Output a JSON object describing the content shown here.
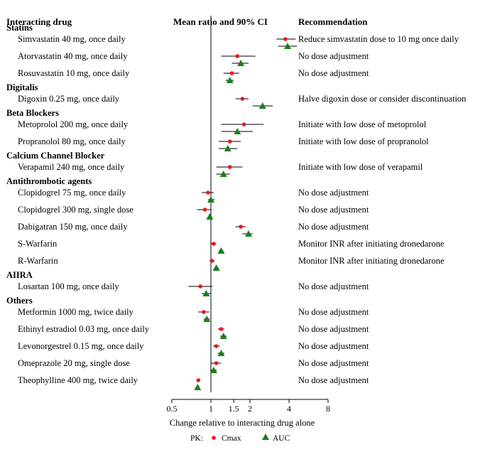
{
  "chart_data": {
    "type": "forest",
    "headers": {
      "drug": "Interacting drug",
      "ci": "Mean ratio and 90% CI",
      "recommendation": "Recommendation"
    },
    "xlabel": "Change relative to interacting drug alone",
    "x_scale": "log",
    "xlim": [
      0.5,
      8
    ],
    "x_ticks": [
      {
        "value": 0.5,
        "label": "0.5"
      },
      {
        "value": 1,
        "label": "1"
      },
      {
        "value": 1.5,
        "label": "1.5"
      },
      {
        "value": 2,
        "label": "2"
      },
      {
        "value": 4,
        "label": "4"
      },
      {
        "value": 8,
        "label": "8"
      }
    ],
    "reference_line": 1,
    "legend": {
      "prefix": "PK:",
      "items": [
        {
          "name": "Cmax",
          "shape": "circle",
          "color": "#e41a1c"
        },
        {
          "name": "AUC",
          "shape": "triangle",
          "color": "#1a7f1a"
        }
      ]
    },
    "groups": [
      {
        "name": "Statins",
        "rows": [
          {
            "drug": "Simvastatin 40 mg, once daily",
            "recommendation": "Reduce simvastatin dose to 10 mg once daily",
            "cmax": {
              "mean": 3.75,
              "lo": 3.2,
              "hi": 4.5
            },
            "auc": {
              "mean": 3.9,
              "lo": 3.3,
              "hi": 4.6
            }
          },
          {
            "drug": "Atorvastatin 40 mg, once daily",
            "recommendation": "No dose adjustment",
            "cmax": {
              "mean": 1.6,
              "lo": 1.2,
              "hi": 2.2
            },
            "auc": {
              "mean": 1.7,
              "lo": 1.45,
              "hi": 1.95
            }
          },
          {
            "drug": "Rosuvastatin 10 mg, once daily",
            "recommendation": "No dose adjustment",
            "cmax": {
              "mean": 1.45,
              "lo": 1.25,
              "hi": 1.65
            },
            "auc": {
              "mean": 1.4,
              "lo": 1.3,
              "hi": 1.5
            }
          }
        ]
      },
      {
        "name": "Digitalis",
        "rows": [
          {
            "drug": "Digoxin 0.25 mg, once daily",
            "recommendation": "Halve digoxin dose or consider discontinuation",
            "cmax": {
              "mean": 1.75,
              "lo": 1.55,
              "hi": 1.95
            },
            "auc": {
              "mean": 2.5,
              "lo": 2.1,
              "hi": 3.0
            }
          }
        ]
      },
      {
        "name": "Beta Blockers",
        "rows": [
          {
            "drug": "Metoprolol 200 mg, once daily",
            "recommendation": "Initiate with low dose of metoprolol",
            "cmax": {
              "mean": 1.8,
              "lo": 1.2,
              "hi": 2.55
            },
            "auc": {
              "mean": 1.6,
              "lo": 1.2,
              "hi": 2.1
            }
          },
          {
            "drug": "Propranolol 80 mg, once daily",
            "recommendation": "Initiate with low dose of propranolol",
            "cmax": {
              "mean": 1.4,
              "lo": 1.15,
              "hi": 1.7
            },
            "auc": {
              "mean": 1.35,
              "lo": 1.15,
              "hi": 1.6
            }
          }
        ]
      },
      {
        "name": "Calcium Channel Blocker",
        "rows": [
          {
            "drug": "Verapamil 240 mg, once daily",
            "recommendation": "Initiate with low dose of verapamil",
            "cmax": {
              "mean": 1.4,
              "lo": 1.1,
              "hi": 1.75
            },
            "auc": {
              "mean": 1.25,
              "lo": 1.1,
              "hi": 1.4
            }
          }
        ]
      },
      {
        "name": "Antithrombotic agents",
        "rows": [
          {
            "drug": "Clopidogrel 75 mg, once daily",
            "recommendation": "No dose adjustment",
            "cmax": {
              "mean": 0.95,
              "lo": 0.85,
              "hi": 1.05
            },
            "auc": {
              "mean": 1.0,
              "lo": 0.95,
              "hi": 1.07
            }
          },
          {
            "drug": "Clopidogrel 300 mg, single dose",
            "recommendation": "No dose adjustment",
            "cmax": {
              "mean": 0.9,
              "lo": 0.78,
              "hi": 1.0
            },
            "auc": {
              "mean": 0.98,
              "lo": 0.95,
              "hi": 1.02
            }
          },
          {
            "drug": "Dabigatran 150 mg, once daily",
            "recommendation": "No dose adjustment",
            "cmax": {
              "mean": 1.7,
              "lo": 1.55,
              "hi": 1.85
            },
            "auc": {
              "mean": 1.95,
              "lo": 1.75,
              "hi": 2.1
            }
          },
          {
            "drug": "S-Warfarin",
            "recommendation": "Monitor INR after initiating dronedarone",
            "cmax": {
              "mean": 1.05,
              "lo": 1.0,
              "hi": 1.1
            },
            "auc": {
              "mean": 1.2,
              "lo": 1.15,
              "hi": 1.25
            }
          },
          {
            "drug": "R-Warfarin",
            "recommendation": "Monitor INR after initiating dronedarone",
            "cmax": {
              "mean": 1.02,
              "lo": 0.97,
              "hi": 1.07
            },
            "auc": {
              "mean": 1.1,
              "lo": 1.06,
              "hi": 1.15
            }
          }
        ]
      },
      {
        "name": "AIIRA",
        "rows": [
          {
            "drug": "Losartan 100 mg, once daily",
            "recommendation": "No dose adjustment",
            "cmax": {
              "mean": 0.83,
              "lo": 0.67,
              "hi": 1.03
            },
            "auc": {
              "mean": 0.92,
              "lo": 0.85,
              "hi": 1.0
            }
          }
        ]
      },
      {
        "name": "Others",
        "rows": [
          {
            "drug": "Metformin 1000 mg, twice daily",
            "recommendation": "No dose adjustment",
            "cmax": {
              "mean": 0.88,
              "lo": 0.8,
              "hi": 0.97
            },
            "auc": {
              "mean": 0.93,
              "lo": 0.88,
              "hi": 0.98
            }
          },
          {
            "drug": "Ethinyl estradiol 0.03 mg, once daily",
            "recommendation": "No dose adjustment",
            "cmax": {
              "mean": 1.2,
              "lo": 1.13,
              "hi": 1.27
            },
            "auc": {
              "mean": 1.25,
              "lo": 1.18,
              "hi": 1.32
            }
          },
          {
            "drug": "Levonorgestrel 0.15 mg, once daily",
            "recommendation": "No dose adjustment",
            "cmax": {
              "mean": 1.1,
              "lo": 1.04,
              "hi": 1.17
            },
            "auc": {
              "mean": 1.2,
              "lo": 1.13,
              "hi": 1.27
            }
          },
          {
            "drug": "Omeprazole 20 mg, single dose",
            "recommendation": "No dose adjustment",
            "cmax": {
              "mean": 1.1,
              "lo": 1.0,
              "hi": 1.2
            },
            "auc": {
              "mean": 1.05,
              "lo": 0.99,
              "hi": 1.11
            }
          },
          {
            "drug": "Theophylline 400 mg, twice daily",
            "recommendation": "No dose adjustment",
            "cmax": {
              "mean": 0.8,
              "lo": 0.78,
              "hi": 0.82
            },
            "auc": {
              "mean": 0.79,
              "lo": 0.77,
              "hi": 0.81
            }
          }
        ]
      }
    ]
  }
}
